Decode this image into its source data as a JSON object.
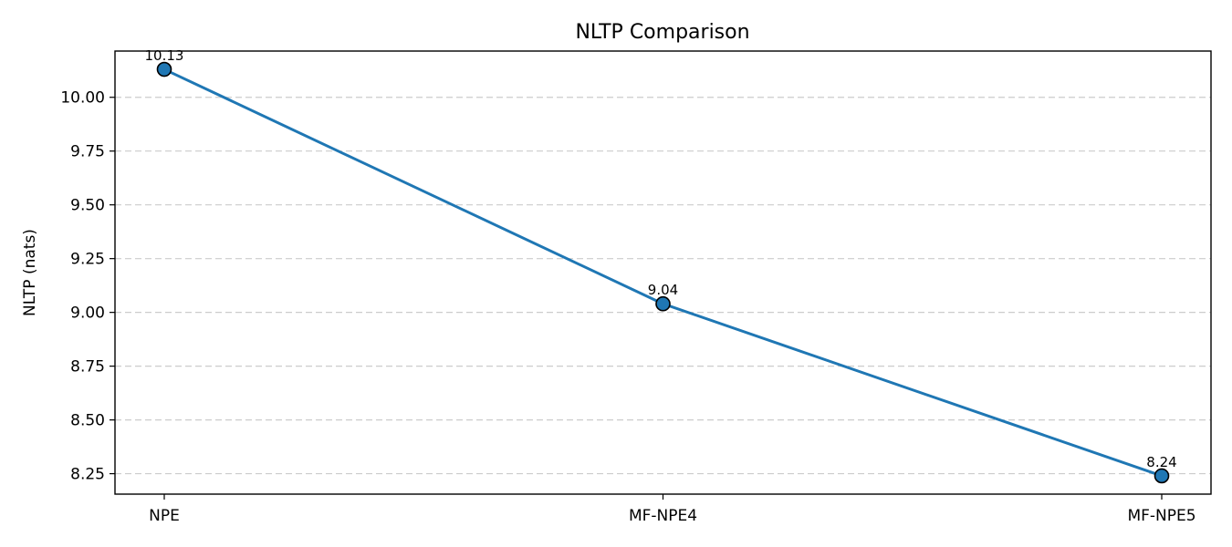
{
  "chart_data": {
    "type": "line",
    "title": "NLTP Comparison",
    "xlabel": "",
    "ylabel": "NLTP (nats)",
    "categories": [
      "NPE",
      "MF-NPE4",
      "MF-NPE5"
    ],
    "series": [
      {
        "values": [
          10.13,
          9.04,
          8.24
        ],
        "color": "#1f77b4"
      }
    ],
    "data_labels": [
      "10.13",
      "9.04",
      "8.24"
    ],
    "yticks": [
      8.25,
      8.5,
      8.75,
      9.0,
      9.25,
      9.5,
      9.75,
      10.0
    ],
    "ytick_labels": [
      "8.25",
      "8.50",
      "8.75",
      "9.00",
      "9.25",
      "9.50",
      "9.75",
      "10.00"
    ],
    "ylim": [
      8.155,
      10.215
    ],
    "grid": "y-dashed",
    "marker": "circle"
  }
}
